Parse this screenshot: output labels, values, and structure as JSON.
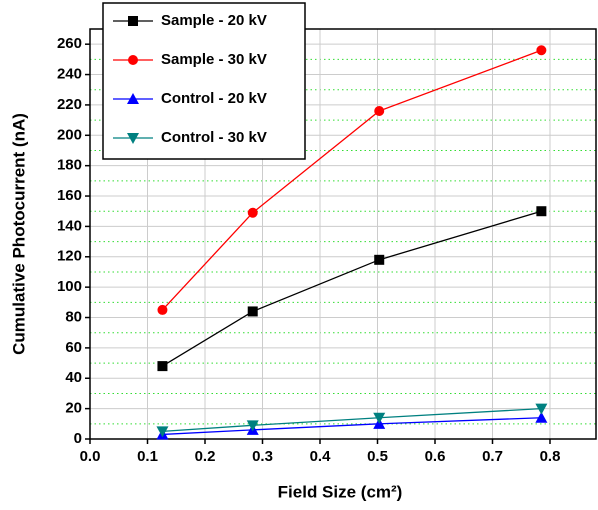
{
  "chart_data": {
    "type": "line",
    "xlabel": "Field Size (cm²)",
    "ylabel": "Cumulative Photocurrent (nA)",
    "x": [
      0.126,
      0.283,
      0.503,
      0.785
    ],
    "series": [
      {
        "name": "Sample - 20 kV",
        "color": "#000000",
        "marker": "square",
        "values": [
          48,
          84,
          118,
          150
        ]
      },
      {
        "name": "Sample - 30 kV",
        "color": "#ff0000",
        "marker": "circle",
        "values": [
          85,
          149,
          216,
          256
        ]
      },
      {
        "name": "Control - 20 kV",
        "color": "#0000ff",
        "marker": "triangle-up",
        "values": [
          3,
          6,
          10,
          14
        ]
      },
      {
        "name": "Control - 30 kV",
        "color": "#008080",
        "marker": "triangle-down",
        "values": [
          5,
          9,
          14,
          20
        ]
      }
    ],
    "xlim": [
      0,
      0.88
    ],
    "xticks": [
      {
        "value": 0,
        "label": "0.0"
      },
      0.1,
      0.2,
      0.3,
      0.4,
      0.5,
      0.6,
      0.7,
      0.8
    ],
    "ylim": [
      0,
      270
    ],
    "yticks": [
      0,
      20,
      40,
      60,
      80,
      100,
      120,
      140,
      160,
      180,
      200,
      220,
      240,
      260
    ],
    "y_minor_ticks": [
      10,
      30,
      50,
      70,
      90,
      110,
      130,
      150,
      170,
      190,
      210,
      230,
      250
    ],
    "grid": true,
    "legend": "top-left"
  }
}
